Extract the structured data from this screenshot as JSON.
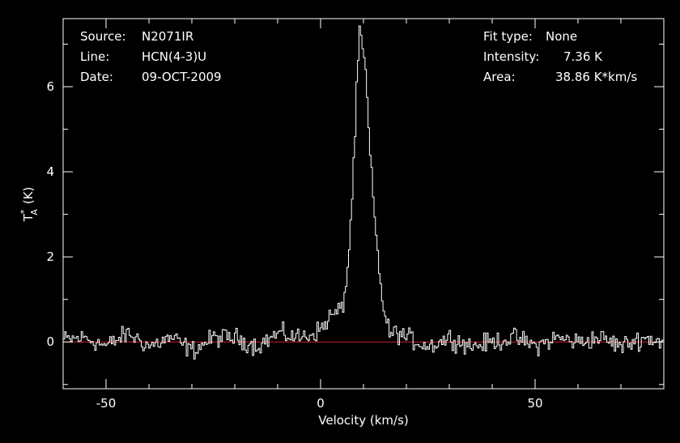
{
  "header": {
    "source_label": "Source:",
    "source_value": "N2071IR",
    "line_label": "Line:",
    "line_value": "HCN(4-3)U",
    "date_label": "Date:",
    "date_value": "09-OCT-2009",
    "fit_label": "Fit type:",
    "fit_value": "None",
    "intensity_label": "Intensity:",
    "intensity_value": "7.36 K",
    "area_label": "Area:",
    "area_value": "38.86 K*km/s"
  },
  "chart_data": {
    "type": "line",
    "title": "",
    "xlabel": "Velocity (km/s)",
    "ylabel_main": "T",
    "ylabel_sup": "*",
    "ylabel_sub": "A",
    "ylabel_unit": "(K)",
    "xlim": [
      -60,
      80
    ],
    "ylim": [
      -1.1,
      7.6
    ],
    "x_ticks": [
      -50,
      0,
      50
    ],
    "x_tick_labels": [
      "-50",
      "0",
      "50"
    ],
    "y_ticks": [
      0,
      2,
      4,
      6
    ],
    "y_tick_labels": [
      "0",
      "2",
      "4",
      "6"
    ],
    "grid": false,
    "baseline": 0,
    "colors": {
      "spectrum": "#ffffff",
      "baseline": "#cc2222",
      "axes": "#ffffff",
      "background": "#000000"
    },
    "series": [
      {
        "style": "histogram",
        "x": [
          -60,
          -55,
          -50,
          -45,
          -40,
          -35,
          -30,
          -25,
          -20,
          -15,
          -10,
          -5,
          -2,
          0,
          2,
          4,
          5,
          6,
          7,
          8,
          8.5,
          9,
          9.5,
          10,
          10.5,
          11,
          12,
          13,
          14,
          15,
          16,
          18,
          20,
          25,
          30,
          35,
          40,
          45,
          50,
          55,
          60,
          65,
          70,
          75,
          80
        ],
        "y": [
          0.05,
          0.1,
          -0.1,
          0.2,
          -0.1,
          0.1,
          -0.2,
          0.1,
          0.1,
          -0.1,
          0.2,
          0.1,
          0.2,
          0.3,
          0.6,
          0.7,
          0.85,
          1.5,
          3.0,
          5.2,
          6.5,
          7.3,
          7.0,
          6.6,
          6.2,
          5.0,
          3.5,
          2.2,
          1.2,
          0.5,
          0.2,
          0.2,
          0.1,
          -0.1,
          0.1,
          -0.1,
          0.0,
          0.1,
          -0.1,
          0.1,
          0.0,
          0.1,
          -0.1,
          0.1,
          0.0
        ]
      }
    ]
  }
}
